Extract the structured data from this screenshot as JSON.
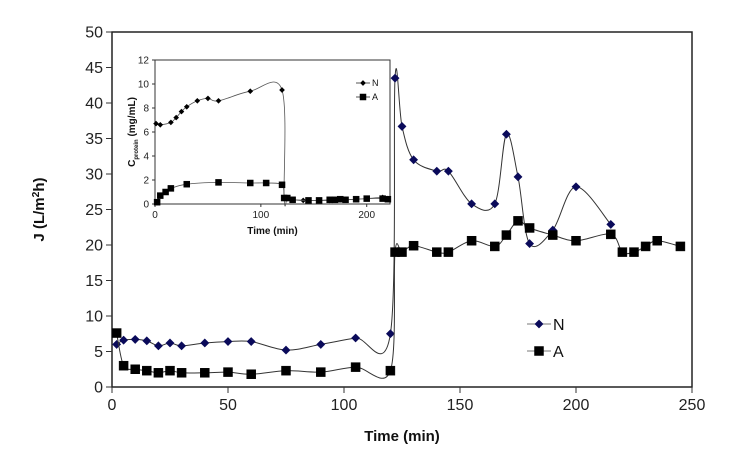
{
  "chart_data": [
    {
      "type": "line",
      "title": "",
      "xlabel": "Time (min)",
      "ylabel": "J (L/m²h)",
      "ylabel_parts": {
        "main": "J (L/m",
        "sup": "2",
        "tail": "h)"
      },
      "xlim": [
        0,
        250
      ],
      "ylim": [
        0,
        50
      ],
      "xticks": [
        0,
        50,
        100,
        150,
        200,
        250
      ],
      "yticks": [
        0,
        5,
        10,
        15,
        20,
        25,
        30,
        35,
        40,
        45,
        50
      ],
      "grid": false,
      "legend_position": "bottom-right",
      "series": [
        {
          "name": "N",
          "marker": "diamond",
          "color": "#0a0a5a",
          "points": [
            [
              2,
              6.0
            ],
            [
              5,
              6.6
            ],
            [
              10,
              6.7
            ],
            [
              15,
              6.5
            ],
            [
              20,
              5.8
            ],
            [
              25,
              6.2
            ],
            [
              30,
              5.8
            ],
            [
              40,
              6.2
            ],
            [
              50,
              6.4
            ],
            [
              60,
              6.4
            ],
            [
              75,
              5.2
            ],
            [
              90,
              6.0
            ],
            [
              105,
              6.9
            ],
            [
              120,
              7.5
            ],
            [
              122,
              43.5
            ],
            [
              125,
              36.7
            ],
            [
              130,
              32.0
            ],
            [
              140,
              30.4
            ],
            [
              145,
              30.4
            ],
            [
              155,
              25.8
            ],
            [
              165,
              25.8
            ],
            [
              170,
              35.6
            ],
            [
              175,
              29.6
            ],
            [
              180,
              20.2
            ],
            [
              190,
              22.1
            ],
            [
              200,
              28.2
            ],
            [
              215,
              22.9
            ]
          ]
        },
        {
          "name": "A",
          "marker": "square",
          "color": "#000000",
          "points": [
            [
              2,
              7.6
            ],
            [
              5,
              3.0
            ],
            [
              10,
              2.5
            ],
            [
              15,
              2.3
            ],
            [
              20,
              2.0
            ],
            [
              25,
              2.3
            ],
            [
              30,
              2.0
            ],
            [
              40,
              2.0
            ],
            [
              50,
              2.1
            ],
            [
              60,
              1.8
            ],
            [
              75,
              2.3
            ],
            [
              90,
              2.1
            ],
            [
              105,
              2.8
            ],
            [
              120,
              2.3
            ],
            [
              122,
              19.0
            ],
            [
              125,
              19.0
            ],
            [
              130,
              19.9
            ],
            [
              140,
              19.0
            ],
            [
              145,
              19.0
            ],
            [
              155,
              20.6
            ],
            [
              165,
              19.8
            ],
            [
              170,
              21.4
            ],
            [
              175,
              23.4
            ],
            [
              180,
              22.4
            ],
            [
              190,
              21.4
            ],
            [
              200,
              20.6
            ],
            [
              215,
              21.5
            ],
            [
              220,
              19.0
            ],
            [
              225,
              19.0
            ],
            [
              230,
              19.8
            ],
            [
              235,
              20.6
            ],
            [
              245,
              19.8
            ]
          ]
        }
      ]
    },
    {
      "type": "line",
      "title": "",
      "role": "inset",
      "xlabel": "Time (min)",
      "ylabel": "C protein (mg/mL)",
      "ylabel_parts": {
        "main": "C",
        "sub": "protein",
        "tail": " (mg/mL)"
      },
      "xlim": [
        0,
        222
      ],
      "ylim": [
        0,
        12
      ],
      "xticks": [
        0,
        100,
        200
      ],
      "yticks": [
        0,
        2,
        4,
        6,
        8,
        10,
        12
      ],
      "grid": false,
      "legend_position": "top-right",
      "series": [
        {
          "name": "N",
          "marker": "diamond",
          "color": "#000000",
          "points": [
            [
              1,
              6.7
            ],
            [
              5,
              6.6
            ],
            [
              15,
              6.8
            ],
            [
              20,
              7.2
            ],
            [
              25,
              7.7
            ],
            [
              30,
              8.1
            ],
            [
              40,
              8.6
            ],
            [
              50,
              8.8
            ],
            [
              60,
              8.6
            ],
            [
              90,
              9.4
            ],
            [
              120,
              9.5
            ],
            [
              122,
              0.5
            ],
            [
              125,
              0.45
            ],
            [
              130,
              0.35
            ],
            [
              140,
              0.3
            ],
            [
              145,
              0.3
            ],
            [
              155,
              0.3
            ],
            [
              165,
              0.3
            ],
            [
              170,
              0.35
            ],
            [
              175,
              0.35
            ],
            [
              180,
              0.35
            ],
            [
              190,
              0.4
            ],
            [
              200,
              0.45
            ],
            [
              215,
              0.55
            ],
            [
              220,
              0.45
            ]
          ]
        },
        {
          "name": "A",
          "marker": "square",
          "color": "#000000",
          "points": [
            [
              2,
              0.15
            ],
            [
              5,
              0.7
            ],
            [
              10,
              1.0
            ],
            [
              15,
              1.3
            ],
            [
              30,
              1.65
            ],
            [
              60,
              1.8
            ],
            [
              90,
              1.75
            ],
            [
              105,
              1.75
            ],
            [
              120,
              1.6
            ],
            [
              122,
              0.5
            ],
            [
              125,
              0.5
            ],
            [
              130,
              0.35
            ],
            [
              145,
              0.3
            ],
            [
              155,
              0.3
            ],
            [
              165,
              0.35
            ],
            [
              170,
              0.35
            ],
            [
              175,
              0.4
            ],
            [
              180,
              0.35
            ],
            [
              190,
              0.4
            ],
            [
              200,
              0.45
            ],
            [
              215,
              0.45
            ],
            [
              220,
              0.4
            ]
          ]
        }
      ]
    }
  ]
}
